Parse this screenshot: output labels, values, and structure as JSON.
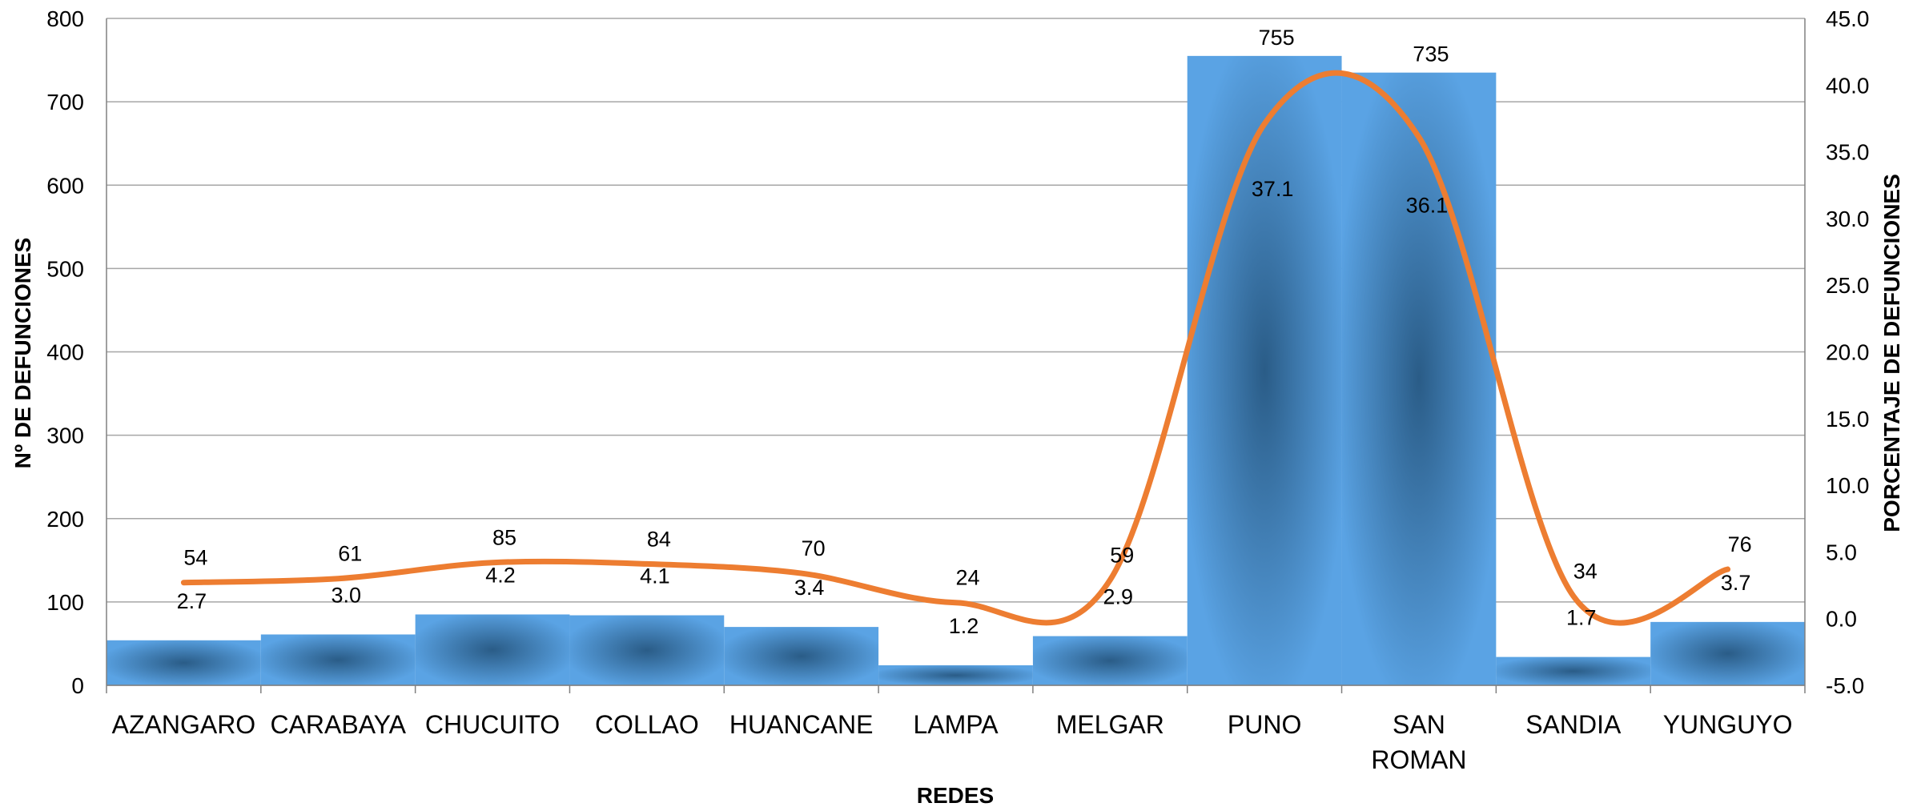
{
  "chart_data": {
    "type": "bar",
    "title": "",
    "xlabel": "REDES",
    "ylabel": "Nº DE DEFUNCIONES",
    "y2label": "PORCENTAJE DE DEFUNCIONES",
    "categories": [
      "AZANGARO",
      "CARABAYA",
      "CHUCUITO",
      "COLLAO",
      "HUANCANE",
      "LAMPA",
      "MELGAR",
      "PUNO",
      "SAN ROMAN",
      "SANDIA",
      "YUNGUYO"
    ],
    "series": [
      {
        "type": "bar",
        "axis": "left",
        "values": [
          54,
          61,
          85,
          84,
          70,
          24,
          59,
          755,
          735,
          34,
          76
        ]
      },
      {
        "type": "line",
        "axis": "right",
        "smooth": true,
        "values": [
          2.7,
          3.0,
          4.2,
          4.1,
          3.4,
          1.2,
          2.9,
          37.1,
          36.1,
          1.7,
          3.7
        ]
      }
    ],
    "ylim": [
      0,
      800
    ],
    "yticks": [
      "0",
      "100",
      "200",
      "300",
      "400",
      "500",
      "600",
      "700",
      "800"
    ],
    "y2lim": [
      -5,
      45
    ],
    "y2ticks": [
      "-5.0",
      "0.0",
      "5.0",
      "10.0",
      "15.0",
      "20.0",
      "25.0",
      "30.0",
      "35.0",
      "40.0",
      "45.0"
    ],
    "grid": true,
    "legend": "none",
    "colors": {
      "bar_edge": "#5aa3e4",
      "bar_center": "#2a5c87",
      "line": "#ed7d31",
      "grid": "#a6a6a6"
    }
  }
}
